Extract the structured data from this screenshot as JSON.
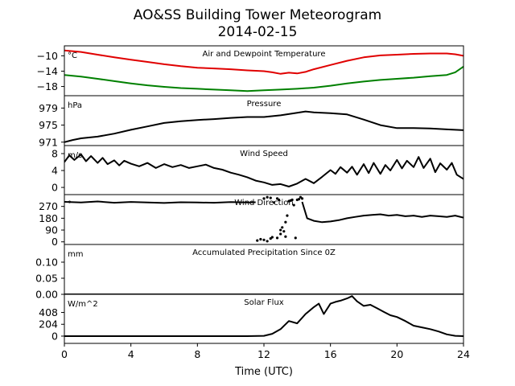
{
  "title": "AO&SS Building Tower Meteorogram",
  "subtitle": "2014-02-15",
  "xlabel": "Time (UTC)",
  "chart_data": {
    "type": "line",
    "x_unit": "hours UTC",
    "xlim": [
      0,
      24
    ],
    "xticks": [
      0,
      4,
      8,
      12,
      16,
      20,
      24
    ],
    "panels": [
      {
        "title": "Air and Dewpoint Temperature",
        "unit": "°C",
        "ylim": [
          -20.4,
          -7.4
        ],
        "yticks": [
          -10,
          -14,
          -18
        ],
        "ytick_labels": [
          "−10",
          "−14",
          "−18"
        ],
        "series": [
          {
            "color": "#e00000",
            "style": "line",
            "x": [
              0,
              1,
              2,
              3,
              4,
              5,
              6,
              7,
              8,
              9,
              10,
              11,
              12,
              12.5,
              13,
              13.5,
              14,
              14.5,
              15,
              16,
              17,
              18,
              19,
              20,
              21,
              22,
              23,
              23.5,
              24
            ],
            "y": [
              -8.6,
              -9.0,
              -9.7,
              -10.4,
              -11.0,
              -11.6,
              -12.2,
              -12.7,
              -13.1,
              -13.3,
              -13.5,
              -13.8,
              -14.0,
              -14.3,
              -14.7,
              -14.4,
              -14.6,
              -14.2,
              -13.5,
              -12.4,
              -11.3,
              -10.4,
              -9.9,
              -9.7,
              -9.5,
              -9.4,
              -9.4,
              -9.6,
              -10.0
            ]
          },
          {
            "color": "#008000",
            "style": "line",
            "x": [
              0,
              1,
              2,
              3,
              4,
              5,
              6,
              7,
              8,
              9,
              10,
              11,
              12,
              13,
              14,
              15,
              16,
              17,
              18,
              19,
              20,
              21,
              22,
              23,
              23.5,
              24
            ],
            "y": [
              -15.0,
              -15.4,
              -16.0,
              -16.6,
              -17.2,
              -17.7,
              -18.1,
              -18.4,
              -18.6,
              -18.8,
              -19.0,
              -19.2,
              -19.0,
              -18.8,
              -18.6,
              -18.3,
              -17.8,
              -17.2,
              -16.7,
              -16.3,
              -16.0,
              -15.7,
              -15.3,
              -15.0,
              -14.3,
              -12.8
            ]
          }
        ]
      },
      {
        "title": "Pressure",
        "unit": "hPa",
        "ylim": [
          970.2,
          981.9
        ],
        "yticks": [
          979,
          975,
          971
        ],
        "ytick_labels": [
          "979",
          "975",
          "971"
        ],
        "series": [
          {
            "color": "#000000",
            "style": "line",
            "x": [
              0,
              0.5,
              1,
              2,
              3,
              4,
              5,
              6,
              7,
              8,
              9,
              10,
              11,
              12,
              13,
              14,
              14.5,
              15,
              16,
              17,
              18,
              19,
              20,
              21,
              22,
              23,
              24
            ],
            "y": [
              971.0,
              971.5,
              971.9,
              972.3,
              973.0,
              973.9,
              974.7,
              975.5,
              975.9,
              976.2,
              976.4,
              976.7,
              976.9,
              976.9,
              977.3,
              977.9,
              978.2,
              978.0,
              977.8,
              977.5,
              976.3,
              975.0,
              974.3,
              974.3,
              974.2,
              974.0,
              973.8
            ]
          }
        ]
      },
      {
        "title": "Wind Speed",
        "unit": "m/s",
        "ylim": [
          -1.7,
          9.9
        ],
        "yticks": [
          8,
          4,
          0
        ],
        "ytick_labels": [
          "8",
          "4",
          "0"
        ],
        "series": [
          {
            "color": "#000000",
            "style": "line",
            "x": [
              0,
              0.3,
              0.6,
              1,
              1.3,
              1.6,
              2,
              2.3,
              2.6,
              3,
              3.3,
              3.6,
              4,
              4.5,
              5,
              5.5,
              6,
              6.5,
              7,
              7.5,
              8,
              8.5,
              9,
              9.5,
              10,
              10.5,
              11,
              11.5,
              12,
              12.5,
              13,
              13.5,
              14,
              14.5,
              15,
              15.5,
              16,
              16.3,
              16.6,
              17,
              17.3,
              17.6,
              18,
              18.3,
              18.6,
              19,
              19.3,
              19.6,
              20,
              20.3,
              20.6,
              21,
              21.3,
              21.6,
              22,
              22.3,
              22.6,
              23,
              23.3,
              23.6,
              24
            ],
            "y": [
              6.0,
              7.6,
              6.5,
              7.8,
              6.2,
              7.4,
              5.8,
              7.0,
              5.5,
              6.4,
              5.2,
              6.3,
              5.6,
              5.0,
              5.8,
              4.6,
              5.5,
              4.8,
              5.3,
              4.6,
              5.0,
              5.4,
              4.6,
              4.2,
              3.5,
              3.0,
              2.4,
              1.6,
              1.2,
              0.6,
              0.8,
              0.2,
              0.9,
              2.0,
              1.0,
              2.5,
              4.1,
              3.2,
              4.8,
              3.5,
              4.9,
              3.0,
              5.5,
              3.4,
              5.8,
              3.2,
              5.3,
              4.0,
              6.5,
              4.5,
              6.3,
              4.8,
              7.2,
              4.6,
              6.8,
              3.6,
              5.7,
              4.2,
              5.8,
              3.0,
              2.0
            ]
          }
        ]
      },
      {
        "title": "Wind Direction",
        "unit": "°",
        "ylim": [
          -20,
          360
        ],
        "yticks": [
          270,
          180,
          90,
          0
        ],
        "ytick_labels": [
          "270",
          "180",
          "90",
          "0"
        ],
        "series": [
          {
            "color": "#000000",
            "style": "line",
            "x": [
              0,
              1,
              2,
              3,
              4,
              5,
              6,
              7,
              8,
              9,
              10,
              11,
              11.5
            ],
            "y": [
              305,
              300,
              308,
              298,
              304,
              300,
              296,
              302,
              300,
              298,
              303,
              300,
              302
            ]
          },
          {
            "color": "#000000",
            "style": "dots",
            "x": [
              11.6,
              11.8,
              12.0,
              12.2,
              12.4,
              12.5,
              12.6,
              12.8,
              12.9,
              13.0,
              13.1,
              13.2,
              13.3,
              13.4,
              13.5,
              13.6,
              13.7,
              13.8,
              13.9,
              14.0,
              14.1,
              14.2,
              14.3,
              12.0,
              12.2,
              12.4,
              12.8,
              13.0,
              13.3
            ],
            "y": [
              10,
              20,
              15,
              5,
              25,
              35,
              300,
              330,
              320,
              60,
              110,
              80,
              40,
              200,
              310,
              315,
              320,
              280,
              30,
              320,
              325,
              340,
              330,
              330,
              340,
              335,
              30,
              90,
              150
            ]
          },
          {
            "color": "#000000",
            "style": "line",
            "x": [
              14.3,
              14.6,
              15,
              15.5,
              16,
              16.5,
              17,
              17.5,
              18,
              18.5,
              19,
              19.5,
              20,
              20.5,
              21,
              21.5,
              22,
              22.5,
              23,
              23.5,
              24
            ],
            "y": [
              305,
              180,
              160,
              150,
              155,
              165,
              180,
              190,
              200,
              205,
              210,
              200,
              205,
              195,
              200,
              190,
              200,
              195,
              190,
              200,
              185
            ]
          }
        ]
      },
      {
        "title": "Accumulated Precipitation Since 0Z",
        "unit": "mm",
        "ylim": [
          0,
          0.155
        ],
        "yticks": [
          0.1,
          0.05,
          0.0
        ],
        "ytick_labels": [
          "0.10",
          "0.05",
          "0.00"
        ],
        "series": [
          {
            "color": "#000000",
            "style": "line",
            "x": [
              0,
              24
            ],
            "y": [
              0,
              0
            ]
          }
        ]
      },
      {
        "title": "Solar Flux",
        "unit": "W/m^2",
        "ylim": [
          -125,
          720
        ],
        "yticks": [
          408,
          204,
          0
        ],
        "ytick_labels": [
          "408",
          "204",
          "0"
        ],
        "series": [
          {
            "color": "#000000",
            "style": "line",
            "x": [
              0,
              11,
              12,
              12.5,
              13,
              13.5,
              14,
              14.5,
              15,
              15.3,
              15.6,
              16,
              16.3,
              16.6,
              17,
              17.3,
              17.6,
              18,
              18.4,
              18.8,
              19.2,
              19.6,
              20,
              20.5,
              21,
              21.5,
              22,
              22.5,
              23,
              23.5,
              24
            ],
            "y": [
              0,
              0,
              5,
              40,
              120,
              260,
              220,
              380,
              500,
              560,
              380,
              560,
              590,
              610,
              650,
              690,
              600,
              520,
              540,
              480,
              420,
              360,
              330,
              260,
              180,
              150,
              120,
              80,
              30,
              5,
              0
            ]
          }
        ]
      }
    ]
  }
}
